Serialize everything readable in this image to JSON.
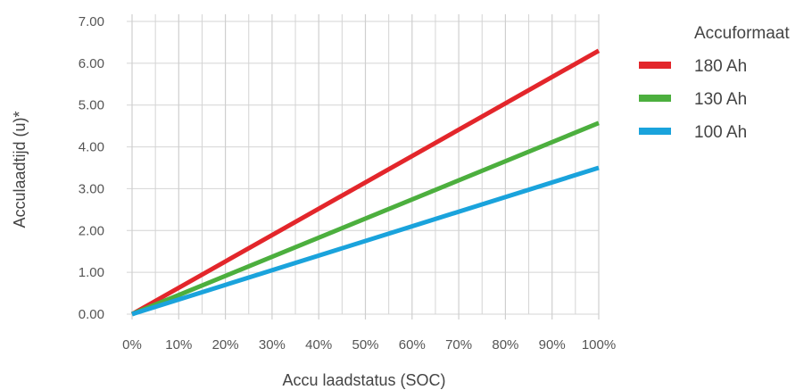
{
  "chart_data": {
    "type": "line",
    "xlabel": "Accu laadstatus (SOC)",
    "ylabel": "Acculaadtijd (u)*",
    "x": [
      0,
      100
    ],
    "x_ticks": [
      "0%",
      "10%",
      "20%",
      "30%",
      "40%",
      "50%",
      "60%",
      "70%",
      "80%",
      "90%",
      "100%"
    ],
    "y_ticks": [
      "0.00",
      "1.00",
      "2.00",
      "3.00",
      "4.00",
      "5.00",
      "6.00",
      "7.00"
    ],
    "xlim": [
      0,
      100
    ],
    "ylim": [
      0,
      7
    ],
    "grid": true,
    "legend": {
      "title": "Accuformaat",
      "position": "right"
    },
    "series": [
      {
        "name": "180 Ah",
        "color": "#e3262b",
        "x": [
          0,
          100
        ],
        "values": [
          0,
          6.3
        ]
      },
      {
        "name": "130 Ah",
        "color": "#4caf3e",
        "x": [
          0,
          100
        ],
        "values": [
          0,
          4.57
        ]
      },
      {
        "name": "100 Ah",
        "color": "#1aa3dc",
        "x": [
          0,
          100
        ],
        "values": [
          0,
          3.5
        ]
      }
    ]
  }
}
